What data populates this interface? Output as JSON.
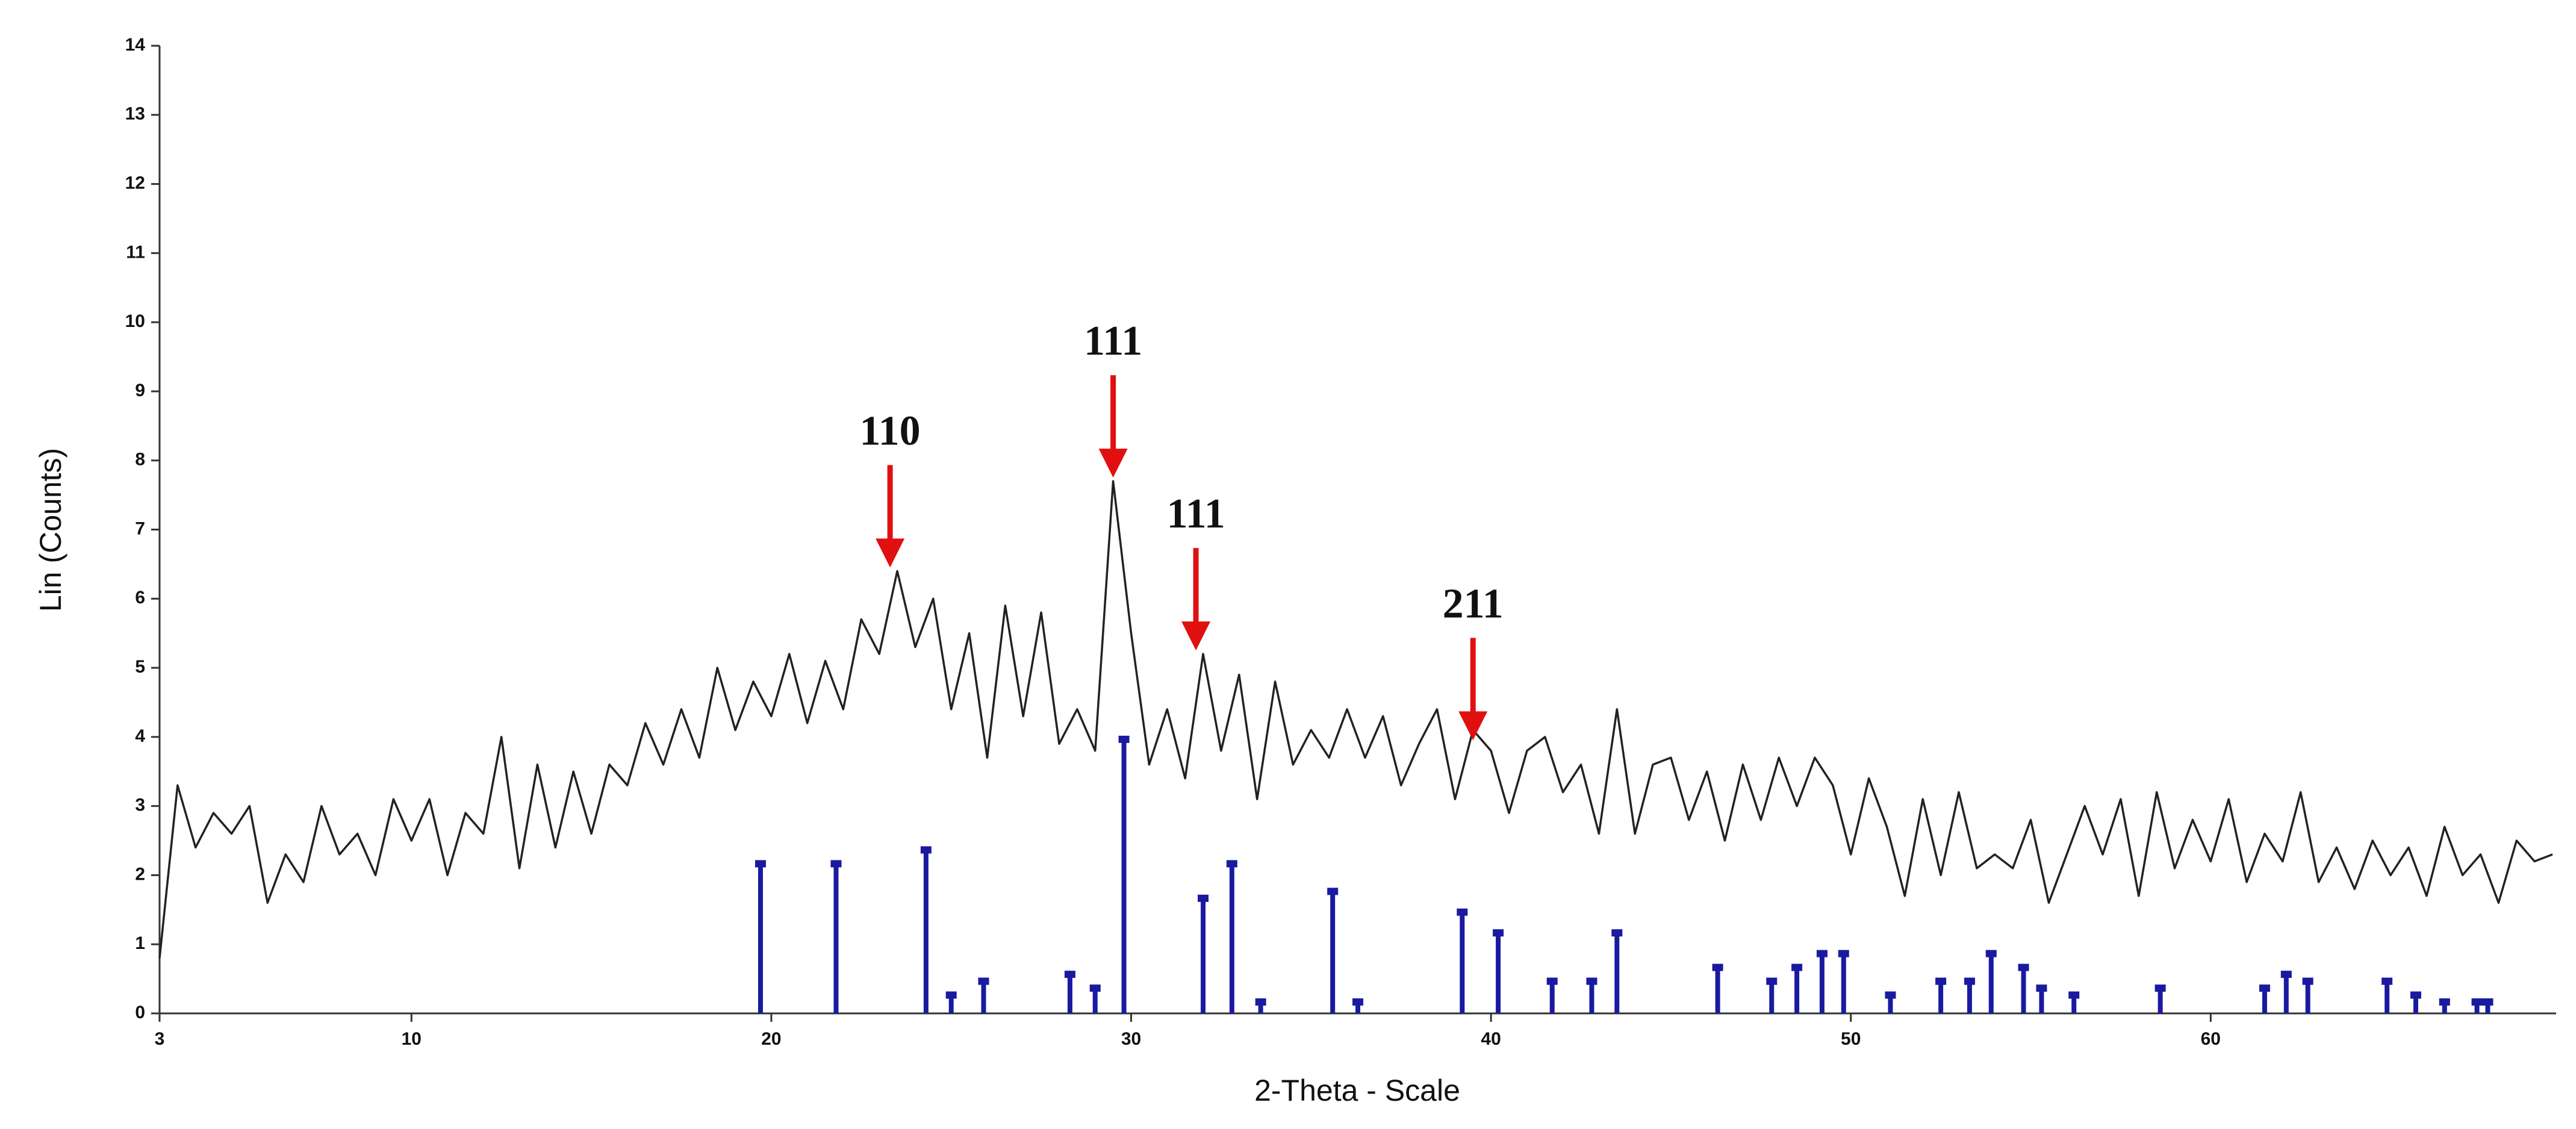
{
  "chart_data": {
    "type": "xrd",
    "x_label": "2-Theta - Scale",
    "y_label": "Lin (Counts)",
    "xlim": [
      3,
      69.6
    ],
    "xticks": [
      3,
      10,
      20,
      30,
      40,
      50,
      60
    ],
    "ylim": [
      0,
      14
    ],
    "yticks": [
      0,
      1,
      2,
      3,
      4,
      5,
      6,
      7,
      8,
      9,
      10,
      11,
      12,
      13,
      14
    ],
    "series": [
      {
        "type": "line",
        "color": "#222222",
        "x": [
          3,
          3.5,
          4,
          4.5,
          5,
          5.5,
          6,
          6.5,
          7,
          7.5,
          8,
          8.5,
          9,
          9.5,
          10,
          10.5,
          11,
          11.5,
          12,
          12.5,
          13,
          13.5,
          14,
          14.5,
          15,
          15.5,
          16,
          16.5,
          17,
          17.5,
          18,
          18.5,
          19,
          19.5,
          20,
          20.5,
          21,
          21.5,
          22,
          22.5,
          23,
          23.5,
          24,
          24.5,
          25,
          25.5,
          26,
          26.5,
          27,
          27.5,
          28,
          28.5,
          29,
          29.5,
          30,
          30.5,
          31,
          31.5,
          32,
          32.5,
          33,
          33.5,
          34,
          34.5,
          35,
          35.5,
          36,
          36.5,
          37,
          37.5,
          38,
          38.5,
          39,
          39.5,
          40,
          40.5,
          41,
          41.5,
          42,
          42.5,
          43,
          43.5,
          44,
          44.5,
          45,
          45.5,
          46,
          46.5,
          47,
          47.5,
          48,
          48.5,
          49,
          49.5,
          50,
          50.5,
          51,
          51.5,
          52,
          52.5,
          53,
          53.5,
          54,
          54.5,
          55,
          55.5,
          56,
          56.5,
          57,
          57.5,
          58,
          58.5,
          59,
          59.5,
          60,
          60.5,
          61,
          61.5,
          62,
          62.5,
          63,
          63.5,
          64,
          64.5,
          65,
          65.5,
          66,
          66.5,
          67,
          67.5,
          68,
          68.5,
          69,
          69.5
        ],
        "values": [
          0.8,
          3.3,
          2.4,
          2.9,
          2.6,
          3.0,
          1.6,
          2.3,
          1.9,
          3.0,
          2.3,
          2.6,
          2.0,
          3.1,
          2.5,
          3.1,
          2.0,
          2.9,
          2.6,
          4.0,
          2.1,
          3.6,
          2.4,
          3.5,
          2.6,
          3.6,
          3.3,
          4.2,
          3.6,
          4.4,
          3.7,
          5.0,
          4.1,
          4.8,
          4.3,
          5.2,
          4.2,
          5.1,
          4.4,
          5.7,
          5.2,
          6.4,
          5.3,
          6.0,
          4.4,
          5.5,
          3.7,
          5.9,
          4.3,
          5.8,
          3.9,
          4.4,
          3.8,
          7.7,
          5.5,
          3.6,
          4.4,
          3.4,
          5.2,
          3.8,
          4.9,
          3.1,
          4.8,
          3.6,
          4.1,
          3.7,
          4.4,
          3.7,
          4.3,
          3.3,
          3.9,
          4.4,
          3.1,
          4.1,
          3.8,
          2.9,
          3.8,
          4.0,
          3.2,
          3.6,
          2.6,
          4.4,
          2.6,
          3.6,
          3.7,
          2.8,
          3.5,
          2.5,
          3.6,
          2.8,
          3.7,
          3.0,
          3.7,
          3.3,
          2.3,
          3.4,
          2.7,
          1.7,
          3.1,
          2.0,
          3.2,
          2.1,
          2.3,
          2.1,
          2.8,
          1.6,
          2.3,
          3.0,
          2.3,
          3.1,
          1.7,
          3.2,
          2.1,
          2.8,
          2.2,
          3.1,
          1.9,
          2.6,
          2.2,
          3.2,
          1.9,
          2.4,
          1.8,
          2.5,
          2.0,
          2.4,
          1.7,
          2.7,
          2.0,
          2.3,
          1.6,
          2.5,
          2.2,
          2.3
        ]
      },
      {
        "type": "stick",
        "color": "#1a1aa0",
        "x": [
          19.7,
          21.8,
          24.3,
          25.0,
          25.9,
          28.3,
          29.0,
          29.8,
          32.0,
          32.8,
          33.6,
          35.6,
          36.3,
          39.2,
          40.2,
          41.7,
          42.8,
          43.5,
          46.3,
          47.8,
          48.5,
          49.2,
          49.8,
          51.1,
          52.5,
          53.3,
          53.9,
          54.8,
          55.3,
          56.2,
          58.6,
          61.5,
          62.1,
          62.7,
          64.9,
          65.7,
          66.5,
          67.4,
          67.7
        ],
        "values": [
          2.2,
          2.2,
          2.4,
          0.3,
          0.5,
          0.6,
          0.4,
          4.0,
          1.7,
          2.2,
          0.2,
          1.8,
          0.2,
          1.5,
          1.2,
          0.5,
          0.5,
          1.2,
          0.7,
          0.5,
          0.7,
          0.9,
          0.9,
          0.3,
          0.5,
          0.5,
          0.9,
          0.7,
          0.4,
          0.3,
          0.4,
          0.4,
          0.6,
          0.5,
          0.5,
          0.3,
          0.2,
          0.2,
          0.2
        ]
      }
    ],
    "annotations": [
      {
        "label": "110",
        "x": 23.3,
        "y": 6.4
      },
      {
        "label": "111",
        "x": 29.5,
        "y": 7.7
      },
      {
        "label": "111",
        "x": 31.8,
        "y": 5.2
      },
      {
        "label": "211",
        "x": 39.5,
        "y": 3.9
      }
    ],
    "annotation_color": "#e01010"
  }
}
